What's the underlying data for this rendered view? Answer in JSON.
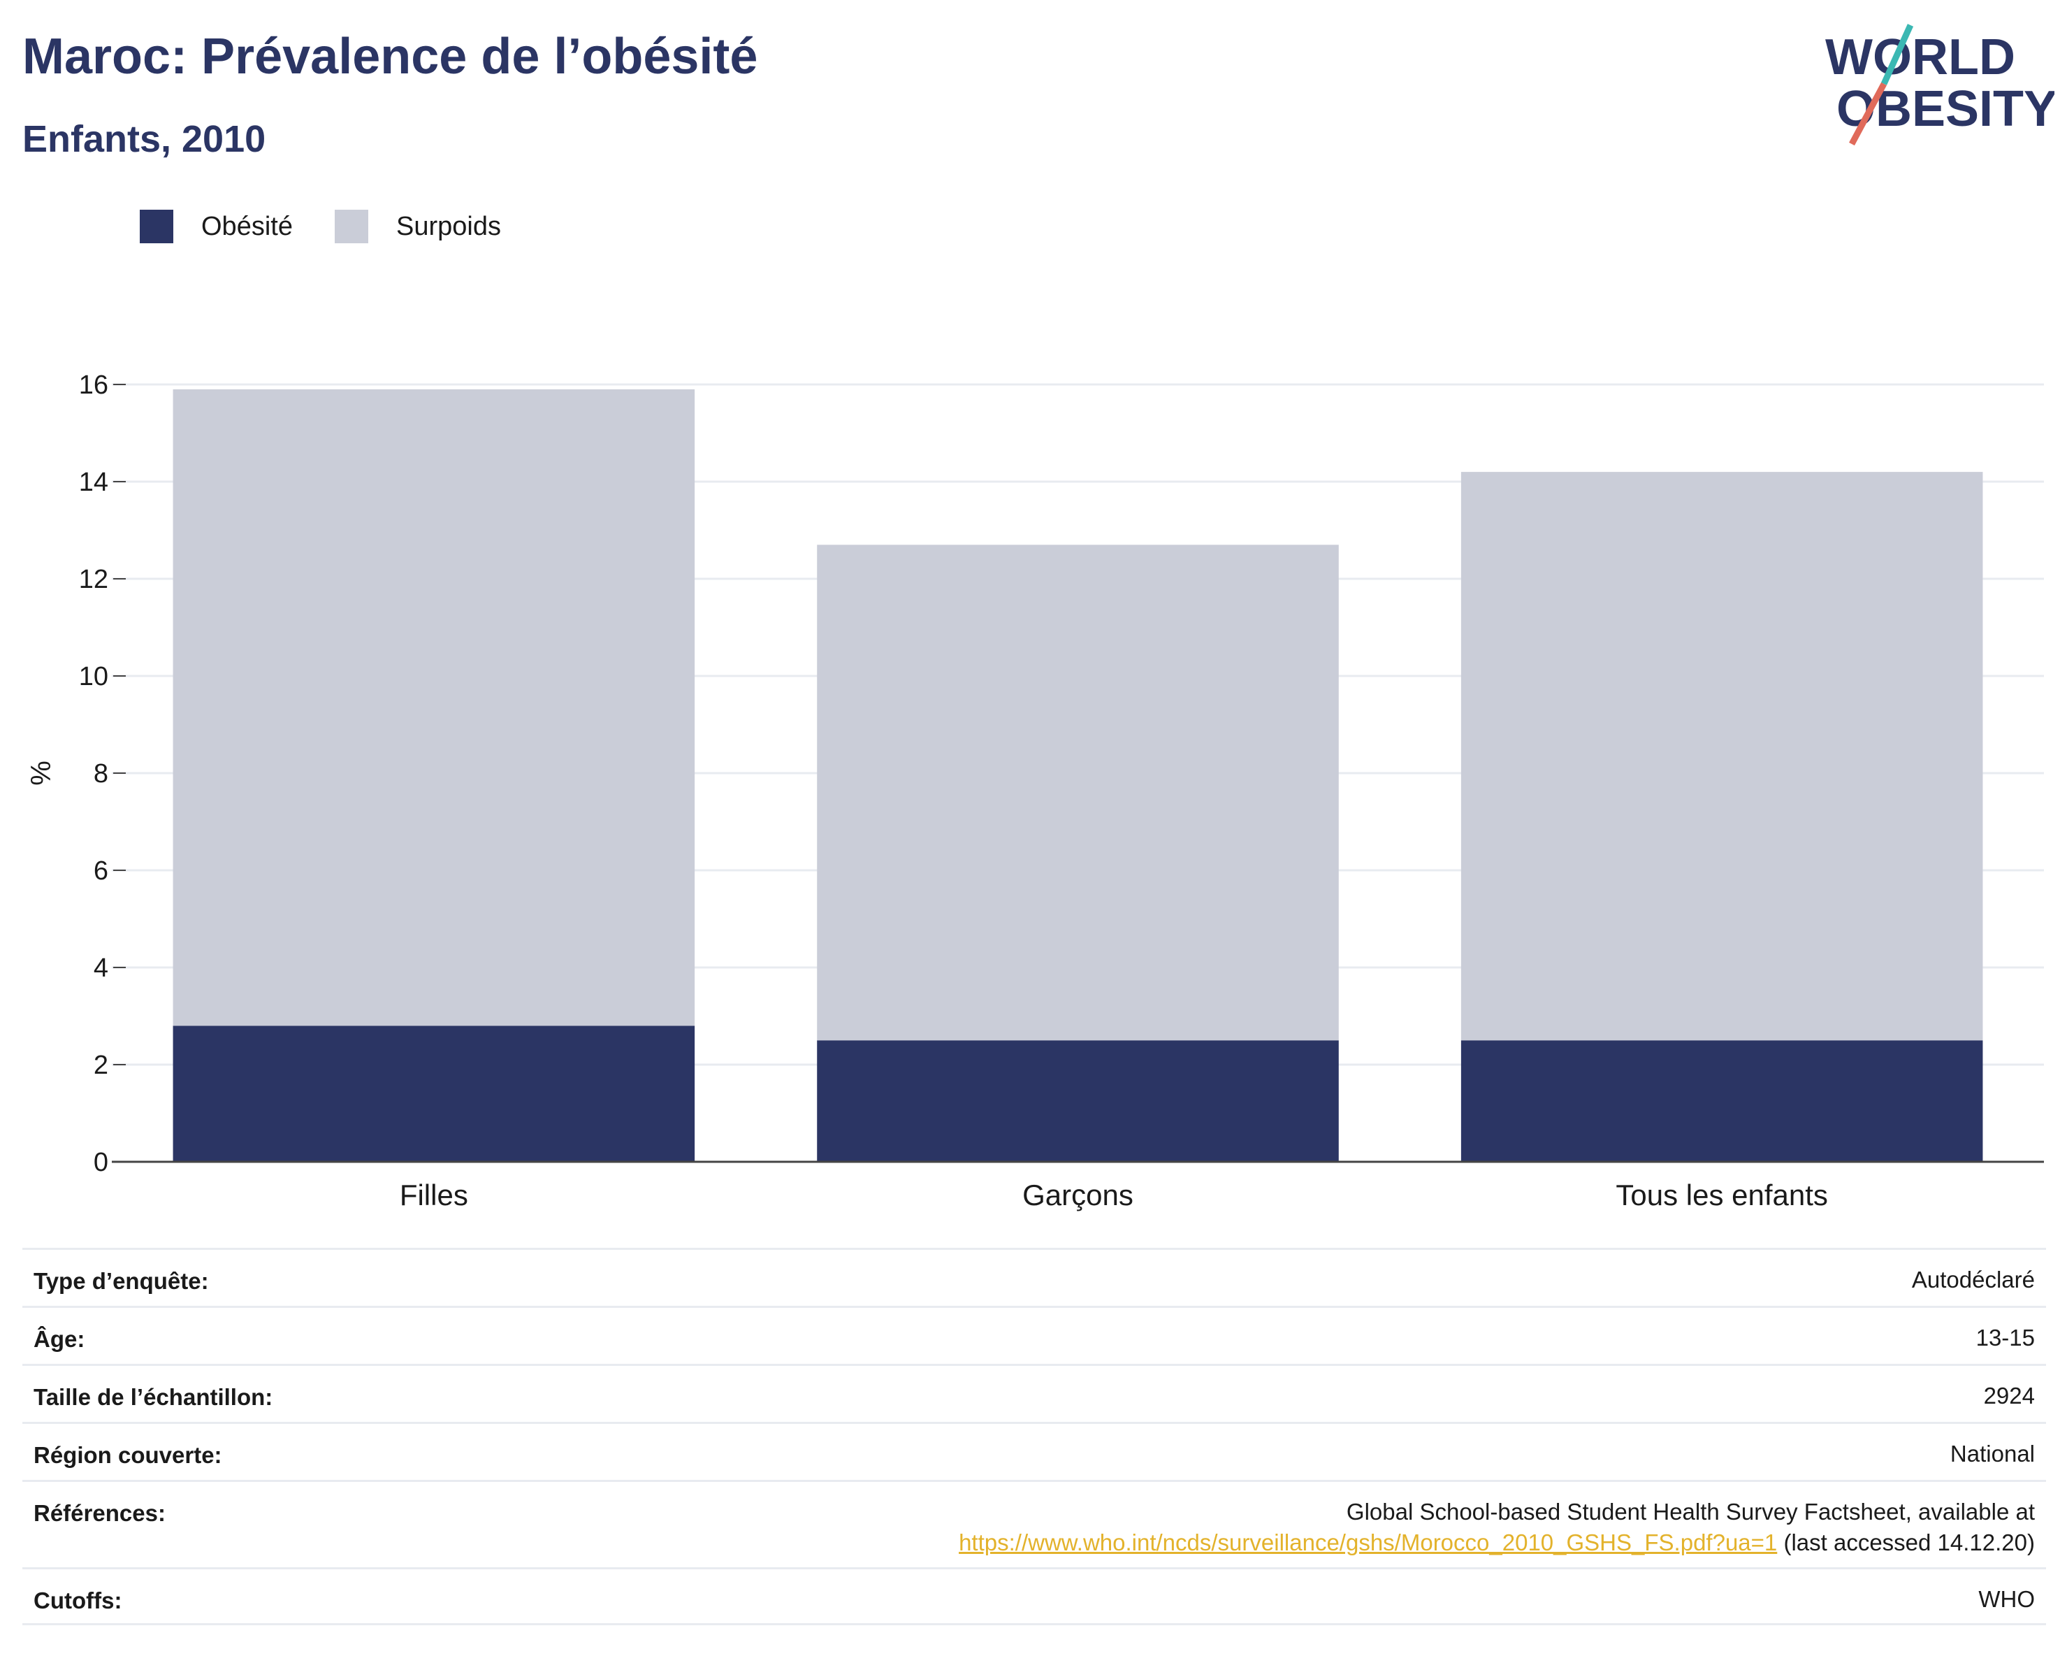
{
  "header": {
    "title": "Maroc: Prévalence de l’obésité",
    "subtitle": "Enfants, 2010"
  },
  "logo": {
    "line1": "WORLD",
    "line2": "OBESITY",
    "colors": {
      "text": "#2b3564",
      "slash_teal": "#3bb8b3",
      "slash_coral": "#e06a5a"
    }
  },
  "colors": {
    "obesite": "#2b3564",
    "surpoids": "#cacdd8",
    "grid": "#e8ebf0",
    "axis": "#444444",
    "link": "#e3b22b"
  },
  "chart_data": {
    "type": "bar",
    "stacked": true,
    "categories": [
      "Filles",
      "Garçons",
      "Tous les enfants"
    ],
    "series": [
      {
        "name": "Obésité",
        "values": [
          2.8,
          2.5,
          2.5
        ]
      },
      {
        "name": "Surpoids",
        "values": [
          13.1,
          10.2,
          11.7
        ]
      }
    ],
    "title": "",
    "xlabel": "",
    "ylabel": "%",
    "ylim": [
      0,
      16
    ],
    "yticks": [
      0,
      2,
      4,
      6,
      8,
      10,
      12,
      14,
      16
    ],
    "grid": true,
    "legend_position": "top-left"
  },
  "info": {
    "survey_type": {
      "label": "Type d’enquête:",
      "value": "Autodéclaré"
    },
    "age": {
      "label": "Âge:",
      "value": "13-15"
    },
    "sample_size": {
      "label": "Taille de l’échantillon:",
      "value": "2924"
    },
    "region": {
      "label": "Région couverte:",
      "value": "National"
    },
    "references": {
      "label": "Références:",
      "text1": "Global School-based Student Health Survey Factsheet, available at",
      "link": "https://www.who.int/ncds/surveillance/gshs/Morocco_2010_GSHS_FS.pdf?ua=1",
      "text2": " (last accessed 14.12.20)"
    },
    "cutoffs": {
      "label": "Cutoffs:",
      "value": "WHO"
    }
  }
}
